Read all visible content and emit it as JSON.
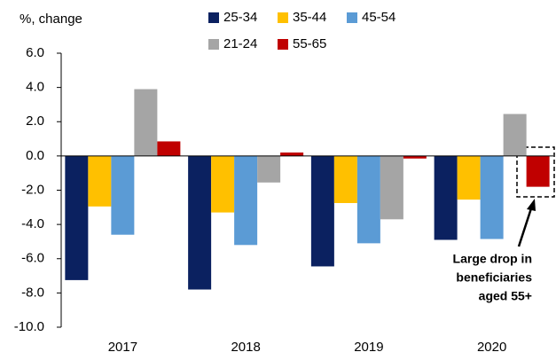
{
  "chart_data": {
    "type": "bar",
    "y_label": "%, change",
    "categories": [
      "2017",
      "2018",
      "2019",
      "2020"
    ],
    "series": [
      {
        "name": "25-34",
        "color": "#0b2160",
        "values": [
          -7.25,
          -7.8,
          -6.45,
          -4.9
        ]
      },
      {
        "name": "35-44",
        "color": "#ffc000",
        "values": [
          -2.95,
          -3.3,
          -2.75,
          -2.55
        ]
      },
      {
        "name": "45-54",
        "color": "#5b9bd5",
        "values": [
          -4.6,
          -5.2,
          -5.1,
          -4.85
        ]
      },
      {
        "name": "21-24",
        "color": "#a5a5a5",
        "values": [
          3.9,
          -1.55,
          -3.7,
          2.45
        ]
      },
      {
        "name": "55-65",
        "color": "#c00000",
        "values": [
          0.85,
          0.2,
          -0.15,
          -1.8
        ]
      }
    ],
    "ylim": [
      -10,
      6
    ],
    "yticks": [
      {
        "value": 6,
        "label": "6.0"
      },
      {
        "value": 4,
        "label": "4.0"
      },
      {
        "value": 2,
        "label": "2.0"
      },
      {
        "value": 0,
        "label": "0.0"
      },
      {
        "value": -2,
        "label": "-2.0"
      },
      {
        "value": -4,
        "label": "-4.0"
      },
      {
        "value": -6,
        "label": "-6.0"
      },
      {
        "value": -8,
        "label": "-8.0"
      },
      {
        "value": -10,
        "label": "-10.0"
      }
    ],
    "annotation": [
      "Large drop in",
      "beneficiaries",
      "aged 55+"
    ]
  }
}
